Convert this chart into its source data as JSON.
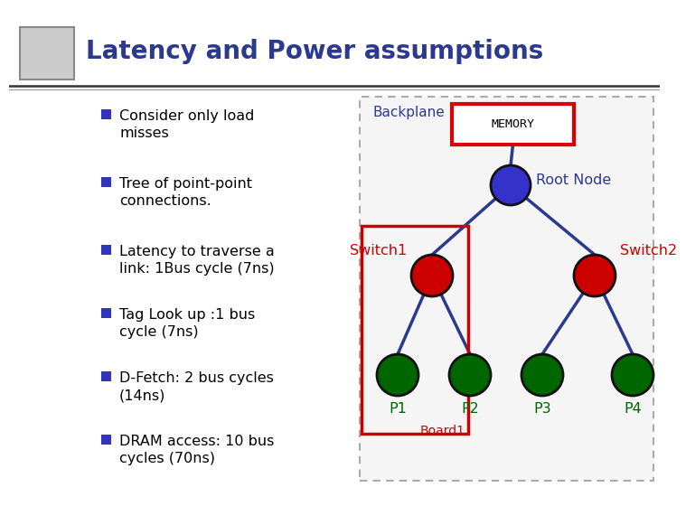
{
  "title": "Latency and Power assumptions",
  "title_color": "#2b3a8f",
  "title_fontsize": 20,
  "bg_color": "#ffffff",
  "separator_color": "#555555",
  "bullet_points": [
    "Consider only load\nmisses",
    "Tree of point-point\nconnections.",
    "Latency to traverse a\nlink: 1Bus cycle (7ns)",
    "Tag Look up :1 bus\ncycle (7ns)",
    "D-Fetch: 2 bus cycles\n(14ns)",
    "DRAM access: 10 bus\ncycles (70ns)"
  ],
  "bullet_color": "#3333bb",
  "bullet_text_color": "#000000",
  "bullet_fontsize": 11.5,
  "diagram": {
    "backplane_label": "Backplane",
    "backplane_label_color": "#2b3a8f",
    "memory_label": "MEMORY",
    "memory_box_color": "#dd0000",
    "memory_bg": "#ffffff",
    "root_label": "Root Node",
    "root_label_color": "#2b3a8f",
    "root_color": "#3333cc",
    "switch1_label": "Switch1",
    "switch1_label_color": "#cc0000",
    "switch2_label": "Switch2",
    "switch2_label_color": "#cc0000",
    "switch_color": "#cc0000",
    "board1_label": "Board1",
    "board1_label_color": "#cc0000",
    "p_color": "#006600",
    "p_labels": [
      "P1",
      "P2",
      "P3",
      "P4"
    ],
    "p_label_color": "#006600",
    "line_color": "#2b3a8f",
    "line_width": 2.5,
    "outer_box_color": "#aaaaaa",
    "inner_box_color": "#cc0000"
  }
}
